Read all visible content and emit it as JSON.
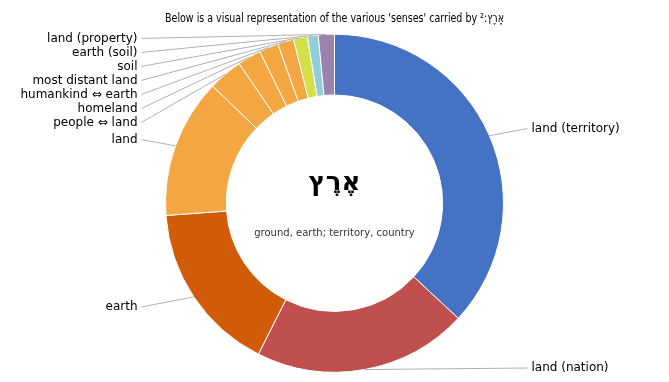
{
  "chart_data": {
    "type": "doughnut",
    "title": "Below is a visual representation of the various 'senses' carried by אֶרֶץ:²",
    "annotations": [
      "אֶרֶץ",
      "ground, earth; territory, country"
    ],
    "categories": [
      "land (territory)",
      "land (nation)",
      "earth",
      "land",
      "people ⇔ land",
      "homeland",
      "humankind ⇔ earth",
      "most distant land",
      "soil",
      "earth (soil)",
      "land (property)"
    ],
    "values": [
      36,
      20,
      16,
      13,
      3.2,
      2.2,
      1.8,
      1.5,
      1.3,
      1.0,
      1.5
    ],
    "colors": [
      "#4472C4",
      "#C0504D",
      "#D05C09",
      "#F4A642",
      "#F4A642",
      "#F4A642",
      "#F4A642",
      "#F4A642",
      "#D4E04A",
      "#92CDDC",
      "#9B83B0"
    ]
  }
}
